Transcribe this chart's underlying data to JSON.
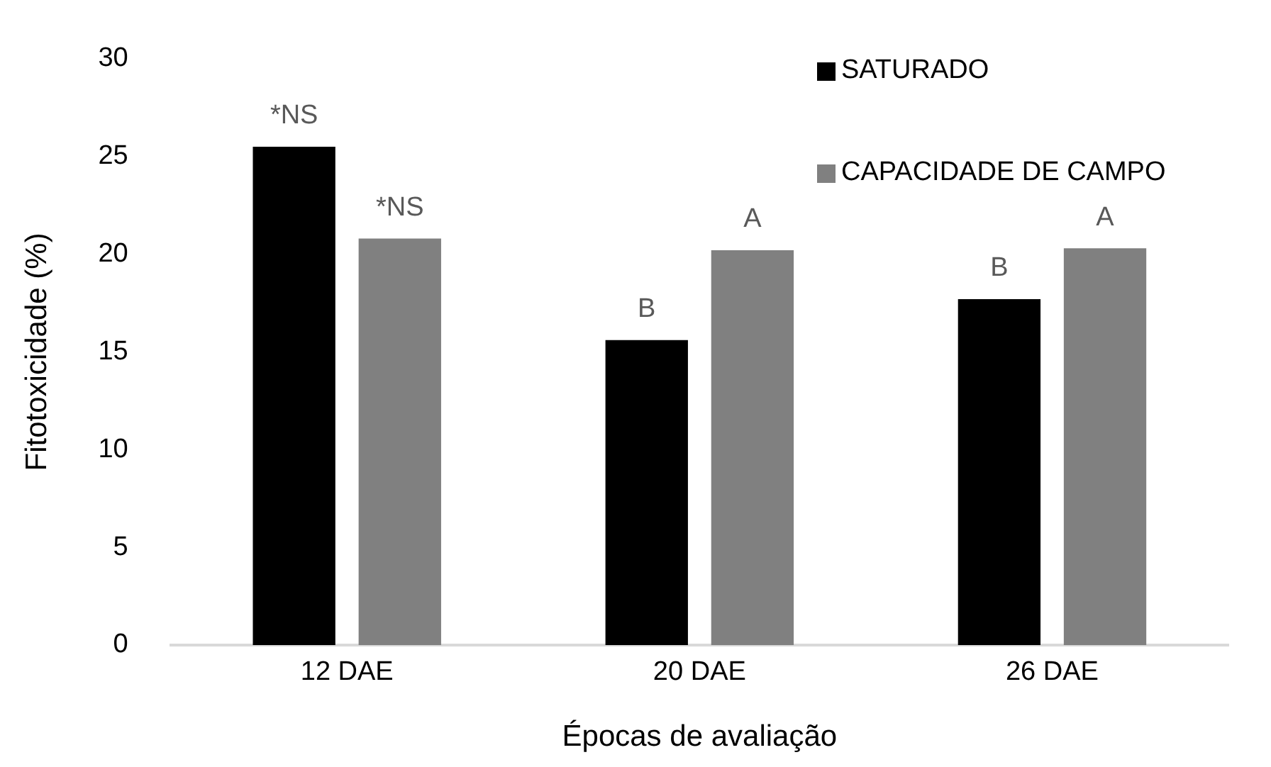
{
  "chart_data": {
    "type": "bar",
    "xlabel": "Épocas de avaliação",
    "ylabel": "Fitotoxicidade (%)",
    "categories": [
      "12 DAE",
      "20 DAE",
      "26 DAE"
    ],
    "series": [
      {
        "name": "SATURADO",
        "color": "#000000",
        "values": [
          25.5,
          15.6,
          17.7
        ],
        "value_labels": [
          "*NS",
          "B",
          "B"
        ]
      },
      {
        "name": "CAPACIDADE DE CAMPO",
        "color": "#808080",
        "values": [
          20.8,
          20.2,
          20.3
        ],
        "value_labels": [
          "*NS",
          "A",
          "A"
        ]
      }
    ],
    "ylim": [
      0,
      30
    ],
    "yticks": [
      0,
      5,
      10,
      15,
      20,
      25,
      30
    ],
    "grid": false,
    "legend": "top right"
  }
}
